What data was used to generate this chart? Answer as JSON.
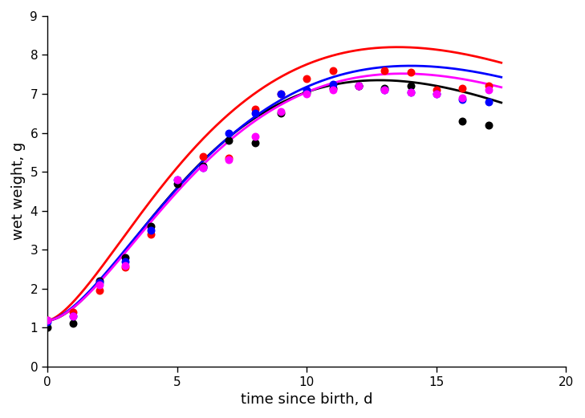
{
  "title": "",
  "xlabel": "time since birth, d",
  "ylabel": "wet weight, g",
  "xlim": [
    0,
    20
  ],
  "ylim": [
    0,
    9
  ],
  "xticks": [
    0,
    5,
    10,
    15,
    20
  ],
  "yticks": [
    0,
    1,
    2,
    3,
    4,
    5,
    6,
    7,
    8,
    9
  ],
  "scatter_black": {
    "x": [
      0,
      1,
      2,
      3,
      4,
      5,
      6,
      7,
      8,
      9,
      10,
      11,
      12,
      13,
      14,
      16,
      17
    ],
    "y": [
      1.0,
      1.1,
      2.2,
      2.8,
      3.6,
      4.7,
      5.15,
      5.8,
      5.75,
      6.5,
      7.05,
      7.15,
      7.2,
      7.15,
      7.2,
      6.3,
      6.2
    ]
  },
  "scatter_red": {
    "x": [
      0,
      1,
      2,
      3,
      4,
      6,
      7,
      8,
      9,
      10,
      11,
      12,
      13,
      14,
      15,
      16,
      17
    ],
    "y": [
      1.2,
      1.4,
      1.95,
      2.55,
      3.4,
      5.4,
      5.35,
      6.6,
      7.0,
      7.4,
      7.6,
      7.2,
      7.6,
      7.55,
      7.1,
      7.15,
      7.2
    ]
  },
  "scatter_blue": {
    "x": [
      0,
      1,
      2,
      3,
      4,
      5,
      6,
      7,
      8,
      9,
      10,
      11,
      12,
      13,
      14,
      15,
      16,
      17
    ],
    "y": [
      1.15,
      1.3,
      2.15,
      2.7,
      3.5,
      4.8,
      5.1,
      6.0,
      6.5,
      7.0,
      7.1,
      7.25,
      7.2,
      7.1,
      7.05,
      7.0,
      6.85,
      6.8
    ]
  },
  "scatter_magenta": {
    "x": [
      0,
      1,
      2,
      3,
      5,
      6,
      7,
      8,
      9,
      10,
      11,
      12,
      13,
      14,
      15,
      16,
      17
    ],
    "y": [
      1.2,
      1.3,
      2.1,
      2.6,
      4.8,
      5.1,
      5.3,
      5.9,
      6.55,
      7.0,
      7.1,
      7.2,
      7.1,
      7.05,
      7.0,
      6.9,
      7.1
    ]
  },
  "curves": {
    "black": {
      "color": "#000000",
      "linewidth": 2.0,
      "y0": 1.18,
      "ymax": 7.35,
      "t_peak": 12.8,
      "k": 1.8
    },
    "red": {
      "color": "#ff0000",
      "linewidth": 2.0,
      "y0": 1.18,
      "ymax": 8.2,
      "t_peak": 13.5,
      "k": 1.6
    },
    "blue": {
      "color": "#0000ff",
      "linewidth": 2.0,
      "y0": 1.18,
      "ymax": 7.72,
      "t_peak": 14.0,
      "k": 1.7
    },
    "magenta": {
      "color": "#ff00ff",
      "linewidth": 2.0,
      "y0": 1.18,
      "ymax": 7.52,
      "t_peak": 13.7,
      "k": 1.75
    }
  },
  "dot_size": 38,
  "background_color": "#ffffff",
  "figsize": [
    7.29,
    5.21
  ],
  "dpi": 100
}
